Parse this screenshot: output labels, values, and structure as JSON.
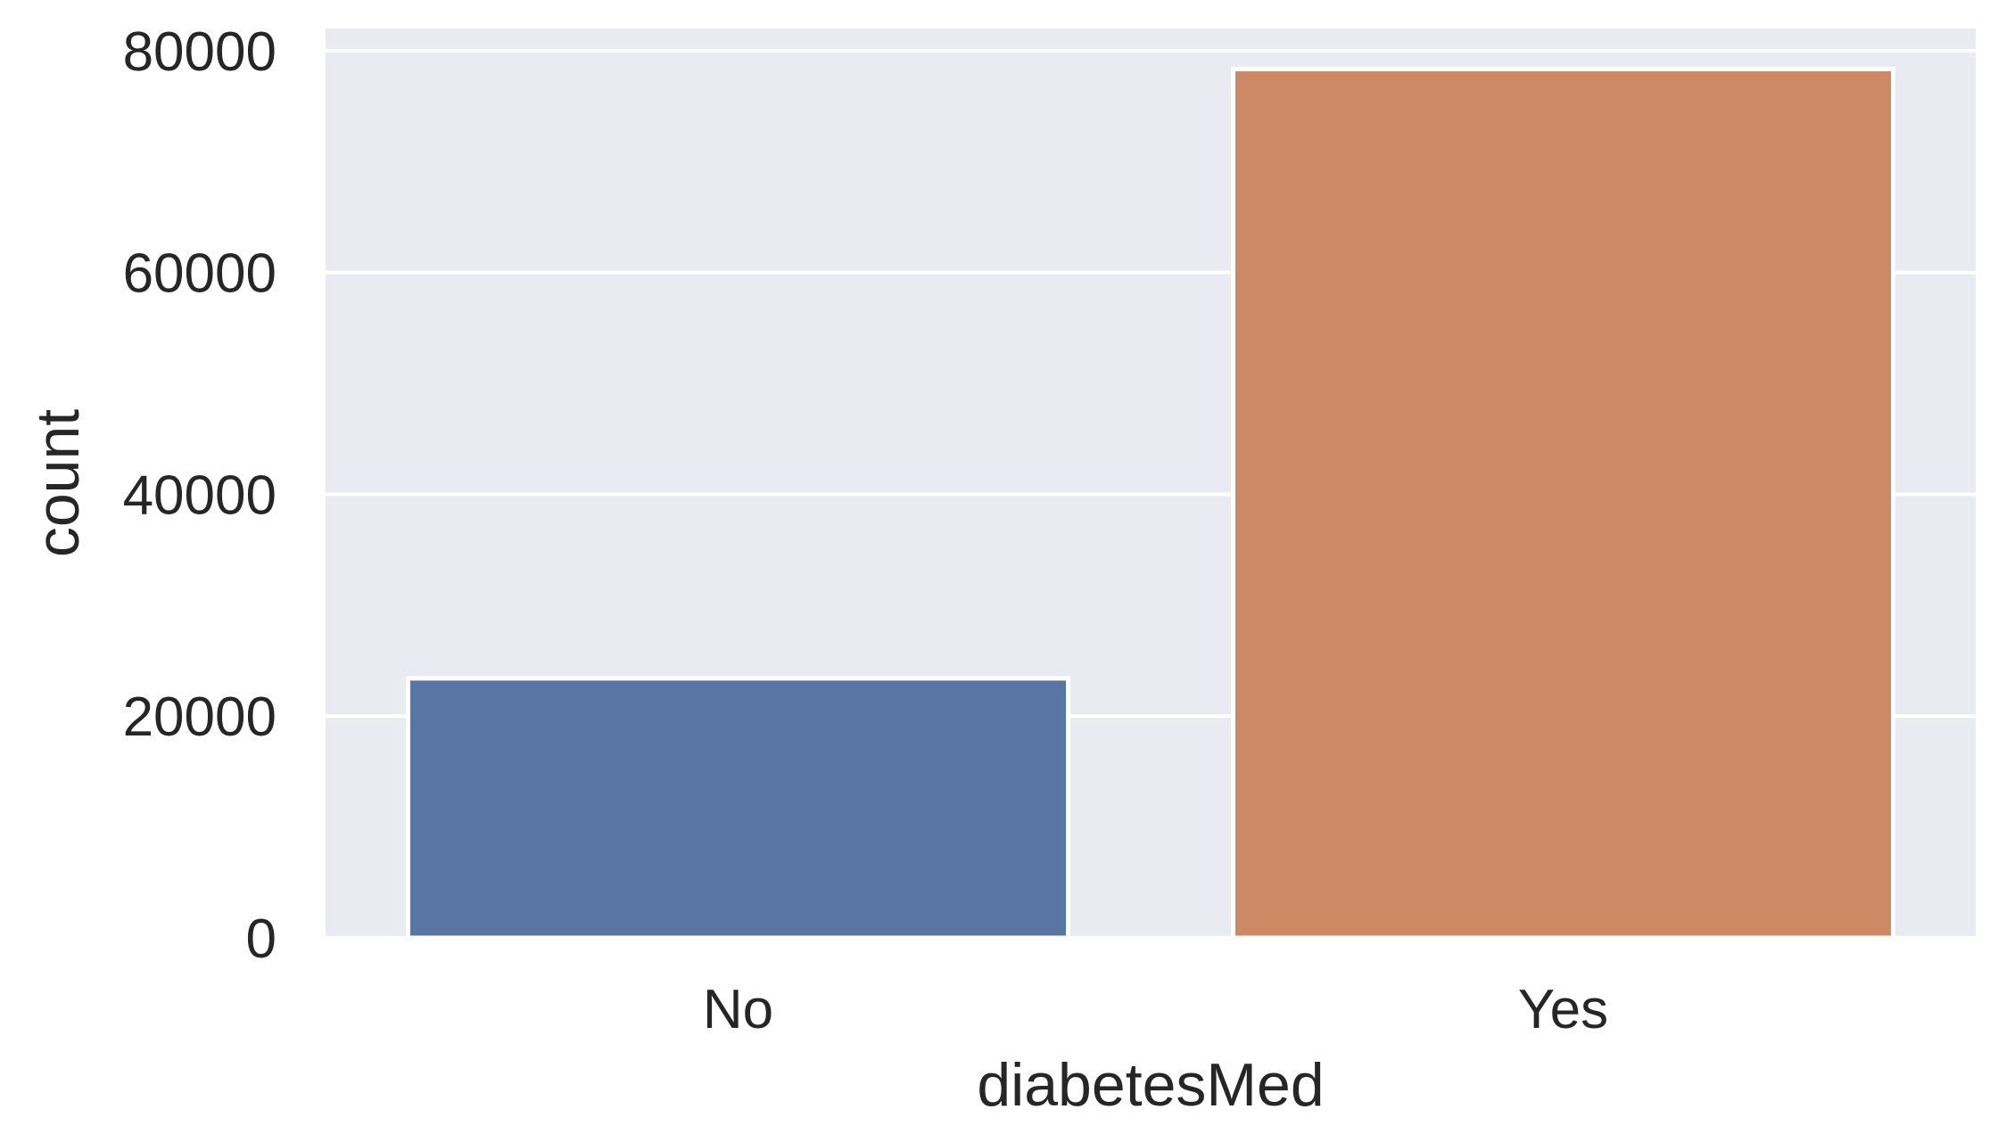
{
  "chart_data": {
    "type": "bar",
    "title": "",
    "xlabel": "diabetesMed",
    "ylabel": "count",
    "categories": [
      "No",
      "Yes"
    ],
    "values": [
      23400,
      78350
    ],
    "colors": [
      "#5875a4",
      "#cc8963"
    ],
    "ylim": [
      0,
      82000
    ],
    "yticks": [
      0,
      20000,
      40000,
      60000,
      80000
    ],
    "ytick_labels": [
      "0",
      "20000",
      "40000",
      "60000",
      "80000"
    ],
    "grid": true,
    "legend": "none",
    "background_color": "#eaeaf2",
    "grid_color": "#ffffff",
    "edge_color": "#ffffff"
  }
}
